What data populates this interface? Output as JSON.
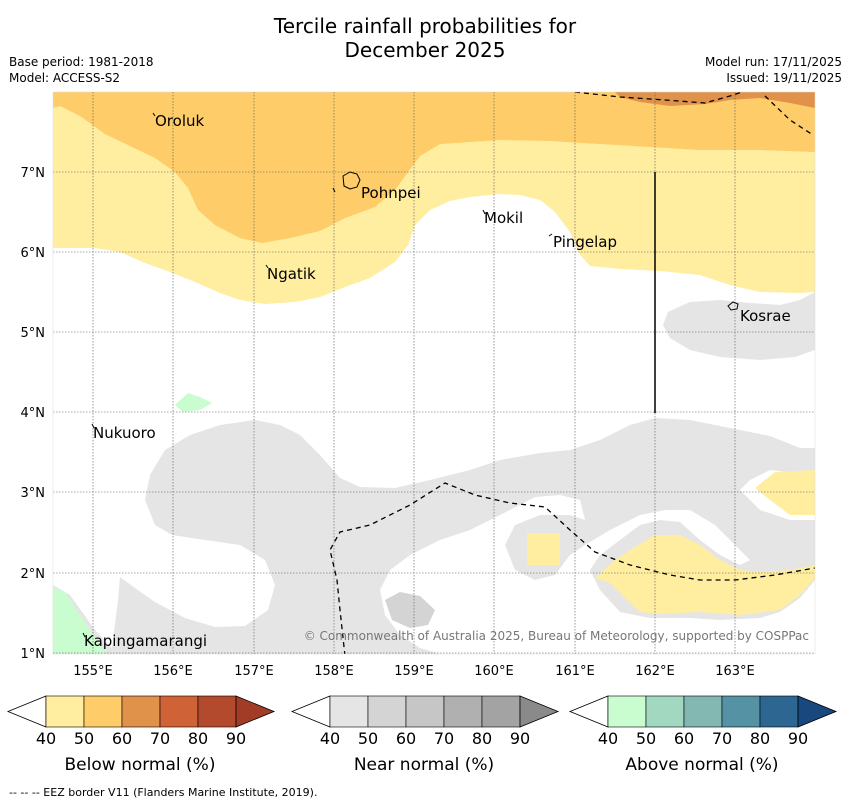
{
  "title": {
    "line1": "Tercile rainfall probabilities for",
    "line2": "December 2025"
  },
  "meta": {
    "base_period": "Base period: 1981-2018",
    "model": "Model: ACCESS-S2",
    "model_run": "Model run: 17/11/2025",
    "issued": "Issued: 19/11/2025"
  },
  "map": {
    "lon_ticks": [
      "155°E",
      "156°E",
      "157°E",
      "158°E",
      "159°E",
      "160°E",
      "161°E",
      "162°E",
      "163°E"
    ],
    "lat_ticks": [
      "7°N",
      "6°N",
      "5°N",
      "4°N",
      "3°N",
      "2°N",
      "1°N"
    ],
    "places": [
      {
        "name": "Oroluk"
      },
      {
        "name": "Pohnpei"
      },
      {
        "name": "Mokil"
      },
      {
        "name": "Pingelap"
      },
      {
        "name": "Ngatik"
      },
      {
        "name": "Kosrae"
      },
      {
        "name": "Nukuoro"
      },
      {
        "name": "Kapingamarangi"
      }
    ],
    "copyright": "© Commonwealth of Australia 2025, Bureau of Meteorology, supported by COSPPac"
  },
  "legends": [
    {
      "label": "Below normal (%)",
      "ticks": [
        "40",
        "50",
        "60",
        "70",
        "80",
        "90"
      ],
      "colors": [
        "#ffffff",
        "#ffeda0",
        "#fecc68",
        "#e0924a",
        "#cf6237",
        "#b44a2d",
        "#a33c27"
      ]
    },
    {
      "label": "Near normal (%)",
      "ticks": [
        "40",
        "50",
        "60",
        "70",
        "80",
        "90"
      ],
      "colors": [
        "#ffffff",
        "#e5e5e5",
        "#d4d4d4",
        "#c6c6c6",
        "#b0b0b0",
        "#a3a3a3",
        "#8a8a8a"
      ]
    },
    {
      "label": "Above normal (%)",
      "ticks": [
        "40",
        "50",
        "60",
        "70",
        "80",
        "90"
      ],
      "colors": [
        "#ffffff",
        "#c9fccf",
        "#a3d8c0",
        "#82b8b1",
        "#5592a3",
        "#2e6692",
        "#18487d"
      ]
    }
  ],
  "footer": "--  --  -- EEZ border V11 (Flanders Marine Institute, 2019)."
}
